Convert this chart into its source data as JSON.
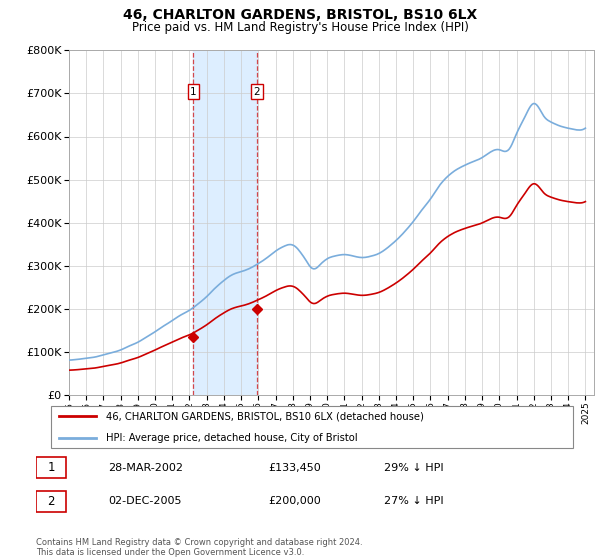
{
  "title": "46, CHARLTON GARDENS, BRISTOL, BS10 6LX",
  "subtitle": "Price paid vs. HM Land Registry's House Price Index (HPI)",
  "legend_label_red": "46, CHARLTON GARDENS, BRISTOL, BS10 6LX (detached house)",
  "legend_label_blue": "HPI: Average price, detached house, City of Bristol",
  "footnote": "Contains HM Land Registry data © Crown copyright and database right 2024.\nThis data is licensed under the Open Government Licence v3.0.",
  "sale1_date": "28-MAR-2002",
  "sale1_price": "£133,450",
  "sale1_hpi": "29% ↓ HPI",
  "sale2_date": "02-DEC-2005",
  "sale2_price": "£200,000",
  "sale2_hpi": "27% ↓ HPI",
  "sale1_x": 2002.23,
  "sale1_y": 133450,
  "sale2_x": 2005.92,
  "sale2_y": 200000,
  "shade_x1": 2002.23,
  "shade_x2": 2005.92,
  "ylim": [
    0,
    800000
  ],
  "xlim_start": 1995.0,
  "xlim_end": 2025.5,
  "red_color": "#cc0000",
  "blue_color": "#7aaddc",
  "shade_color": "#ddeeff",
  "vline_color": "#cc0000",
  "grid_color": "#cccccc",
  "bg_color": "#ffffff",
  "scale1": 0.7098,
  "scale2": 0.7246
}
